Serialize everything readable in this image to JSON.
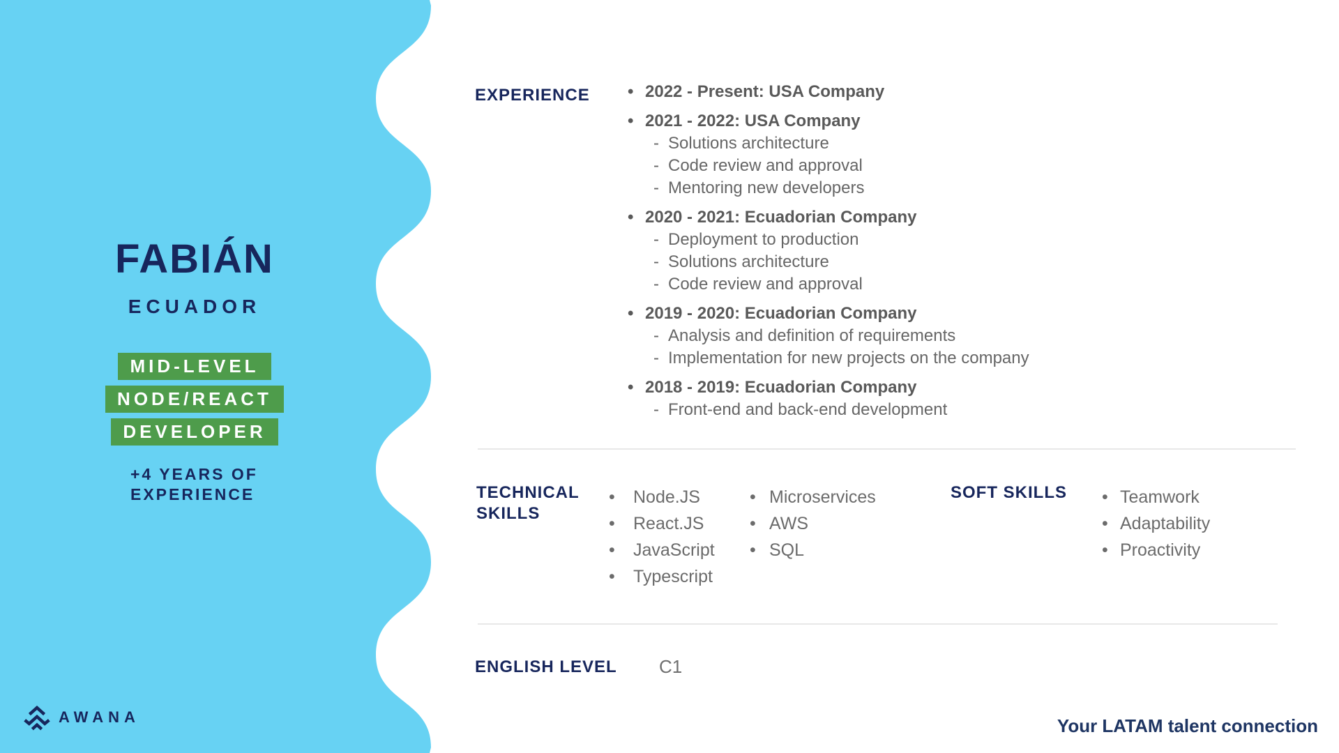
{
  "colors": {
    "sidebar_blue": "#67D2F3",
    "navy": "#17265C",
    "badge_green": "#4E9C4B",
    "text_gray_bold": "#595959",
    "text_gray": "#666666",
    "divider_gray": "#E8E8E8",
    "white": "#FFFFFF"
  },
  "sidebar": {
    "name": "FABIÁN",
    "country": "ECUADOR",
    "badges": [
      "MID-LEVEL",
      "NODE/REACT",
      "DEVELOPER"
    ],
    "years_of_experience": "+4 YEARS OF\nEXPERIENCE",
    "logo_text": "AWANA",
    "logo_icon": "triple-chevron-mountain-icon"
  },
  "main": {
    "experience": {
      "label": "EXPERIENCE",
      "items": [
        {
          "title": "2022 - Present: USA Company",
          "details": []
        },
        {
          "title": "2021 - 2022: USA Company",
          "details": [
            "Solutions architecture",
            "Code review and approval",
            "Mentoring new developers"
          ]
        },
        {
          "title": "2020 - 2021: Ecuadorian Company",
          "details": [
            "Deployment to production",
            "Solutions architecture",
            "Code review and approval"
          ]
        },
        {
          "title": "2019 - 2020: Ecuadorian Company",
          "details": [
            "Analysis and definition of requirements",
            "Implementation for new projects on the company"
          ]
        },
        {
          "title": "2018 - 2019: Ecuadorian Company",
          "details": [
            "Front-end and back-end development"
          ]
        }
      ],
      "bullet_glyph": "•",
      "detail_glyph": "-"
    },
    "technical_skills": {
      "label": "TECHNICAL\nSKILLS",
      "column1": [
        "Node.JS",
        "React.JS",
        "JavaScript",
        "Typescript"
      ],
      "column2": [
        "Microservices",
        "AWS",
        "SQL"
      ]
    },
    "soft_skills": {
      "label": "SOFT SKILLS",
      "items": [
        "Teamwork",
        "Adaptability",
        "Proactivity"
      ]
    },
    "english": {
      "label": "ENGLISH LEVEL",
      "value": "C1"
    }
  },
  "footer": {
    "tagline": "Your LATAM talent connection"
  }
}
